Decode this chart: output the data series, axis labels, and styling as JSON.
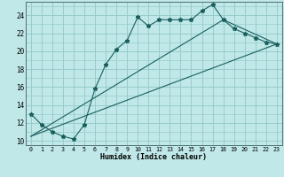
{
  "xlabel": "Humidex (Indice chaleur)",
  "bg_color": "#c0e8e8",
  "grid_color": "#98cccc",
  "line_color": "#1a5f5f",
  "xlim": [
    -0.5,
    23.5
  ],
  "ylim": [
    9.5,
    25.5
  ],
  "xticks": [
    0,
    1,
    2,
    3,
    4,
    5,
    6,
    7,
    8,
    9,
    10,
    11,
    12,
    13,
    14,
    15,
    16,
    17,
    18,
    19,
    20,
    21,
    22,
    23
  ],
  "yticks": [
    10,
    12,
    14,
    16,
    18,
    20,
    22,
    24
  ],
  "main_line_x": [
    0,
    1,
    2,
    3,
    4,
    5,
    6,
    7,
    8,
    9,
    10,
    11,
    12,
    13,
    14,
    15,
    16,
    17,
    18,
    19,
    20,
    21,
    22,
    23
  ],
  "main_line_y": [
    13.0,
    11.8,
    11.0,
    10.5,
    10.2,
    11.8,
    15.8,
    18.5,
    20.2,
    21.2,
    23.8,
    22.8,
    23.5,
    23.5,
    23.5,
    23.5,
    24.5,
    25.2,
    23.5,
    22.5,
    22.0,
    21.5,
    21.0,
    20.8
  ],
  "line2_x": [
    0,
    23
  ],
  "line2_y": [
    10.5,
    20.8
  ],
  "line3_x": [
    0,
    18,
    23
  ],
  "line3_y": [
    10.5,
    23.5,
    20.8
  ],
  "xlabel_fontsize": 6.0,
  "tick_fontsize": 4.8,
  "ytick_fontsize": 5.5,
  "marker_size": 3.5,
  "line_width": 0.8
}
